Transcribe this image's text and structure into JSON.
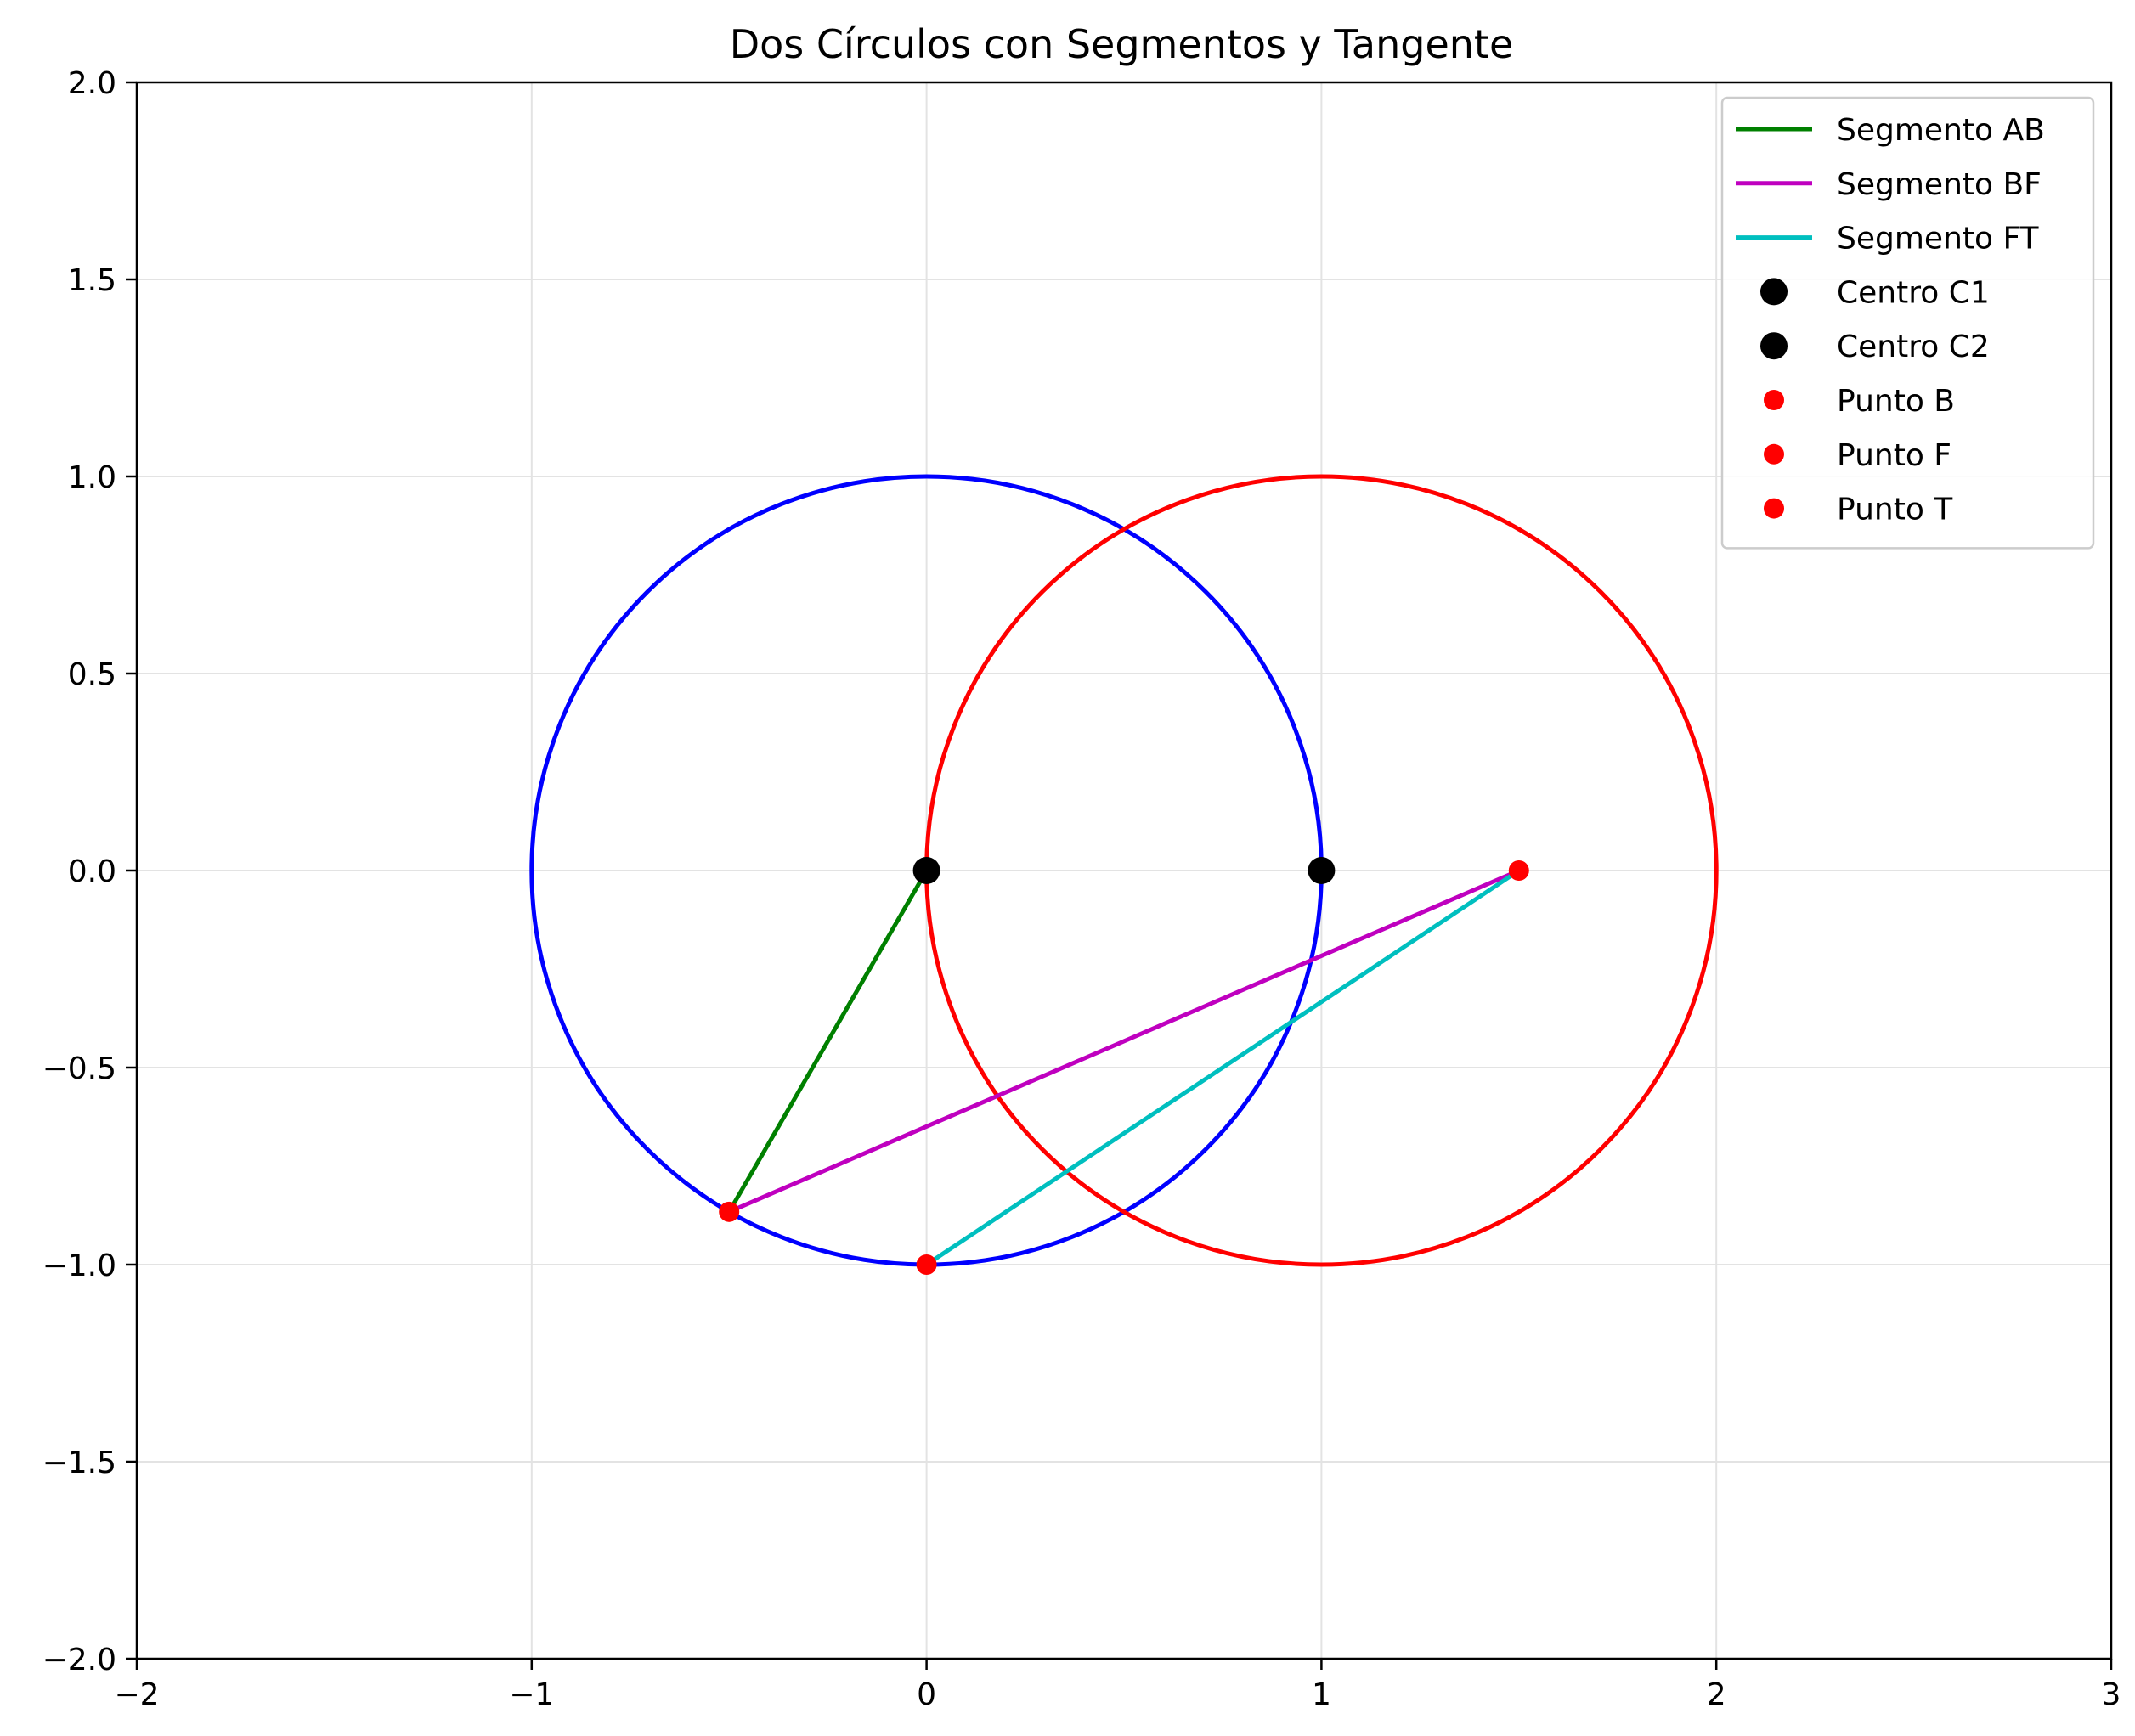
{
  "chart_data": {
    "type": "line",
    "title": "Dos Círculos con Segmentos y Tangente",
    "xlabel": "",
    "ylabel": "",
    "xlim": [
      -2,
      3
    ],
    "ylim": [
      -2,
      2
    ],
    "grid": true,
    "legend_position": "top-right",
    "x_ticks": [
      -2,
      -1,
      0,
      1,
      2,
      3
    ],
    "x_tick_labels": [
      "−2",
      "−1",
      "0",
      "1",
      "2",
      "3"
    ],
    "y_ticks": [
      -2,
      -1.5,
      -1,
      -0.5,
      0,
      0.5,
      1,
      1.5,
      2
    ],
    "y_tick_labels": [
      "−2.0",
      "−1.5",
      "−1.0",
      "−0.5",
      "0.0",
      "0.5",
      "1.0",
      "1.5",
      "2.0"
    ],
    "circles": [
      {
        "center": [
          0,
          0
        ],
        "radius": 1,
        "color": "#0000ff"
      },
      {
        "center": [
          1,
          0
        ],
        "radius": 1,
        "color": "#ff0000"
      }
    ],
    "segments": [
      {
        "name": "Segmento AB",
        "color": "#008000",
        "x": [
          0,
          -0.5
        ],
        "y": [
          0,
          -0.866
        ]
      },
      {
        "name": "Segmento BF",
        "color": "#bf00bf",
        "x": [
          -0.5,
          1.5
        ],
        "y": [
          -0.866,
          0
        ]
      },
      {
        "name": "Segmento FT",
        "color": "#00bfbf",
        "x": [
          1.5,
          0
        ],
        "y": [
          0,
          -1
        ]
      }
    ],
    "points": [
      {
        "name": "Centro C1",
        "x": 0,
        "y": 0,
        "color": "#000000",
        "size": "large"
      },
      {
        "name": "Centro C2",
        "x": 1,
        "y": 0,
        "color": "#000000",
        "size": "large"
      },
      {
        "name": "Punto B",
        "x": -0.5,
        "y": -0.866,
        "color": "#ff0000",
        "size": "small"
      },
      {
        "name": "Punto F",
        "x": 1.5,
        "y": 0,
        "color": "#ff0000",
        "size": "small"
      },
      {
        "name": "Punto T",
        "x": 0,
        "y": -1,
        "color": "#ff0000",
        "size": "small"
      }
    ]
  }
}
